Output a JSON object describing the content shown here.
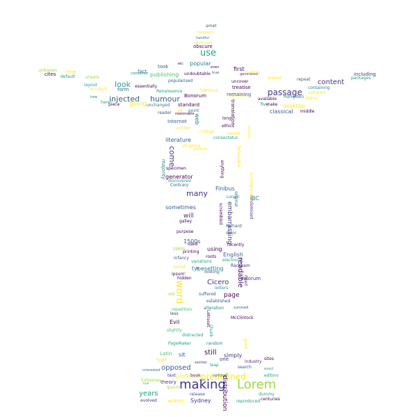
{
  "palette": {
    "purple": "#46327e",
    "dark_purple": "#440154",
    "blue": "#365c8d",
    "teal_blue": "#277f8e",
    "teal": "#1fa187",
    "green": "#4ac16d",
    "light_green": "#9fda3a",
    "yellow": "#fde725"
  },
  "words": [
    {
      "text": "amet",
      "color": "blue"
    },
    {
      "text": "necessary",
      "color": "yellow"
    },
    {
      "text": "handful",
      "color": "teal_blue"
    },
    {
      "text": "dictionary",
      "color": "yellow"
    },
    {
      "text": "obscure",
      "color": "dark_purple"
    },
    {
      "text": "use",
      "color": "teal"
    },
    {
      "text": "etc",
      "color": "dark_purple"
    },
    {
      "text": "popular",
      "color": "teal_blue"
    },
    {
      "text": "even",
      "color": "dark_purple"
    },
    {
      "text": "true",
      "color": "blue"
    },
    {
      "text": "unknown",
      "color": "light_green"
    },
    {
      "text": "cites",
      "color": "dark_purple"
    },
    {
      "text": "line",
      "color": "yellow"
    },
    {
      "text": "default",
      "color": "teal"
    },
    {
      "text": "sheets",
      "color": "light_green"
    },
    {
      "text": "combined",
      "color": "teal_blue"
    },
    {
      "text": "fact",
      "color": "teal_blue"
    },
    {
      "text": "took",
      "color": "blue"
    },
    {
      "text": "publishing",
      "color": "green"
    },
    {
      "text": "undoubtable",
      "color": "dark_purple"
    },
    {
      "text": "first",
      "color": "dark_purple"
    },
    {
      "text": "generated",
      "color": "purple"
    },
    {
      "text": "making",
      "color": "yellow"
    },
    {
      "text": "popularised",
      "color": "blue"
    },
    {
      "text": "uncover",
      "color": "dark_purple"
    },
    {
      "text": "looked",
      "color": "yellow"
    },
    {
      "text": "repeat",
      "color": "blue"
    },
    {
      "text": "including",
      "color": "purple"
    },
    {
      "text": "packages",
      "color": "teal"
    },
    {
      "text": "versions",
      "color": "yellow"
    },
    {
      "text": "layout",
      "color": "teal"
    },
    {
      "text": "accident",
      "color": "yellow"
    },
    {
      "text": "look",
      "color": "teal"
    },
    {
      "text": "form",
      "color": "blue"
    },
    {
      "text": "essentially",
      "color": "dark_purple"
    },
    {
      "text": "Various",
      "color": "yellow"
    },
    {
      "text": "treatise",
      "color": "dark_purple"
    },
    {
      "text": "passage",
      "color": "purple"
    },
    {
      "text": "content",
      "color": "purple"
    },
    {
      "text": "containing",
      "color": "teal_blue"
    },
    {
      "text": "software",
      "color": "yellow"
    },
    {
      "text": "Renaissance",
      "color": "teal"
    },
    {
      "text": "Bonorum",
      "color": "dark_purple"
    },
    {
      "text": "tree",
      "color": "teal_blue"
    },
    {
      "text": "injected",
      "color": "blue"
    },
    {
      "text": "humour",
      "color": "blue"
    },
    {
      "text": "available",
      "color": "dark_purple"
    },
    {
      "text": "make",
      "color": "dark_purple"
    },
    {
      "text": "Hampden",
      "color": "teal_blue"
    },
    {
      "text": "Aldus",
      "color": "yellow"
    },
    {
      "text": "here'",
      "color": "teal"
    },
    {
      "text": "piece",
      "color": "dark_purple"
    },
    {
      "text": "going",
      "color": "yellow"
    },
    {
      "text": "unchanged",
      "color": "teal_blue"
    },
    {
      "text": "standard",
      "color": "dark_purple"
    },
    {
      "text": "five",
      "color": "teal_blue"
    },
    {
      "text": "desktop",
      "color": "yellow"
    },
    {
      "text": "classical",
      "color": "blue"
    },
    {
      "text": "middle",
      "color": "dark_purple"
    },
    {
      "text": "reader",
      "color": "blue"
    },
    {
      "text": "et",
      "color": "yellow"
    },
    {
      "text": "point",
      "color": "teal_blue"
    },
    {
      "text": "reasonable",
      "color": "dark_purple"
    },
    {
      "text": "Internet",
      "color": "blue"
    },
    {
      "text": "web",
      "color": "teal_blue"
    },
    {
      "text": "long",
      "color": "dark_purple"
    },
    {
      "text": "ethics",
      "color": "dark_purple"
    },
    {
      "text": "printer",
      "color": "yellow"
    },
    {
      "text": "college",
      "color": "yellow"
    },
    {
      "text": "model",
      "color": "yellow"
    },
    {
      "text": "consectetur",
      "color": "teal"
    },
    {
      "text": "literature",
      "color": "blue"
    },
    {
      "text": "Virginia",
      "color": "yellow"
    },
    {
      "text": "produce",
      "color": "yellow"
    },
    {
      "text": "come",
      "color": "purple"
    },
    {
      "text": "majority",
      "color": "teal_blue"
    },
    {
      "text": "specimen",
      "color": "dark_purple"
    },
    {
      "text": "generator",
      "color": "dark_purple"
    },
    {
      "text": "discovered",
      "color": "teal"
    },
    {
      "text": "many",
      "color": "purple"
    },
    {
      "text": "Contrary",
      "color": "blue"
    },
    {
      "text": "Finibus",
      "color": "blue"
    },
    {
      "text": "BC",
      "color": "teal_blue"
    },
    {
      "text": "sometimes",
      "color": "blue"
    },
    {
      "text": "will",
      "color": "purple"
    },
    {
      "text": "galley",
      "color": "dark_purple"
    },
    {
      "text": "purpose",
      "color": "dark_purple"
    },
    {
      "text": "Lorem",
      "color": "teal"
    },
    {
      "text": "scrambled",
      "color": "dark_purple"
    },
    {
      "text": "Richard",
      "color": "blue"
    },
    {
      "text": "dolor",
      "color": "teal_blue"
    },
    {
      "text": "randomised",
      "color": "purple"
    },
    {
      "text": "1500s",
      "color": "blue"
    },
    {
      "text": "1960s",
      "color": "light_green"
    },
    {
      "text": "used",
      "color": "dark_purple"
    },
    {
      "text": "printing",
      "color": "dark_purple"
    },
    {
      "text": "using",
      "color": "dark_purple"
    },
    {
      "text": "recently",
      "color": "dark_purple"
    },
    {
      "text": "infancy",
      "color": "blue"
    },
    {
      "text": "roots",
      "color": "dark_purple"
    },
    {
      "text": "English",
      "color": "blue"
    },
    {
      "text": "variations",
      "color": "teal"
    },
    {
      "text": "electronic",
      "color": "teal"
    },
    {
      "text": "belief",
      "color": "yellow"
    },
    {
      "text": "typesetting",
      "color": "teal_blue"
    },
    {
      "text": "Rackham",
      "color": "purple"
    },
    {
      "text": "ipsum'",
      "color": "dark_purple"
    },
    {
      "text": "looking",
      "color": "blue"
    },
    {
      "text": "readable",
      "color": "dark_purple"
    },
    {
      "text": "hidden",
      "color": "dark_purple"
    },
    {
      "text": "word",
      "color": "yellow"
    },
    {
      "text": "Cicero",
      "color": "purple"
    },
    {
      "text": "letters",
      "color": "teal"
    },
    {
      "text": "old",
      "color": "light_green"
    },
    {
      "text": "suffered",
      "color": "blue"
    },
    {
      "text": "page",
      "color": "dark_purple"
    },
    {
      "text": "established",
      "color": "blue"
    },
    {
      "text": "need",
      "color": "purple"
    },
    {
      "text": "alteration",
      "color": "teal_blue"
    },
    {
      "text": "survived",
      "color": "blue"
    },
    {
      "text": "repetition",
      "color": "green"
    },
    {
      "text": "Letraset",
      "color": "dark_purple"
    },
    {
      "text": "less",
      "color": "purple"
    },
    {
      "text": "McClintock",
      "color": "dark_purple"
    },
    {
      "text": "Evil",
      "color": "dark_purple"
    },
    {
      "text": "chunk",
      "color": "teal"
    },
    {
      "text": "slightly",
      "color": "green"
    },
    {
      "text": "distracted",
      "color": "teal"
    },
    {
      "text": "good",
      "color": "yellow"
    },
    {
      "text": "PageMaker",
      "color": "teal"
    },
    {
      "text": "random",
      "color": "teal_blue"
    },
    {
      "text": "still",
      "color": "dark_purple"
    },
    {
      "text": "Latin",
      "color": "green"
    },
    {
      "text": "sit",
      "color": "blue"
    },
    {
      "text": "simply",
      "color": "purple"
    },
    {
      "text": "industry",
      "color": "purple"
    },
    {
      "text": "sites",
      "color": "dark_purple"
    },
    {
      "text": "one",
      "color": "purple"
    },
    {
      "text": "type",
      "color": "yellow"
    },
    {
      "text": "opposed",
      "color": "blue"
    },
    {
      "text": "section",
      "color": "purple"
    },
    {
      "text": "leap",
      "color": "teal"
    },
    {
      "text": "search",
      "color": "blue"
    },
    {
      "text": "exact",
      "color": "teal"
    },
    {
      "text": "predefined",
      "color": "yellow"
    },
    {
      "text": "text",
      "color": "purple"
    },
    {
      "text": "professor",
      "color": "yellow"
    },
    {
      "text": "book",
      "color": "purple"
    },
    {
      "text": "normal",
      "color": "blue"
    },
    {
      "text": "editors",
      "color": "teal"
    },
    {
      "text": "Extremes",
      "color": "light_green"
    },
    {
      "text": "theory",
      "color": "purple"
    },
    {
      "text": "years",
      "color": "teal"
    },
    {
      "text": "making",
      "color": "purple"
    },
    {
      "text": "Lorem",
      "color": "light_green"
    },
    {
      "text": "Ipsum",
      "color": "light_green"
    },
    {
      "text": "release",
      "color": "blue"
    },
    {
      "text": "distribution",
      "color": "dark_purple"
    },
    {
      "text": "dummy",
      "color": "teal"
    },
    {
      "text": "evolved",
      "color": "purple"
    },
    {
      "text": "written",
      "color": "yellow"
    },
    {
      "text": "Sydney",
      "color": "purple"
    },
    {
      "text": "reproduced",
      "color": "teal"
    },
    {
      "text": "centuries",
      "color": "dark_purple"
    },
    {
      "text": "interested",
      "color": "teal_blue"
    },
    {
      "text": "true",
      "color": "teal"
    },
    {
      "text": "sure",
      "color": "teal_blue"
    },
    {
      "text": "remaining",
      "color": "blue"
    },
    {
      "text": "humour",
      "color": "yellow"
    },
    {
      "text": "accompanied",
      "color": "yellow"
    },
    {
      "text": "original",
      "color": "blue"
    },
    {
      "text": "anything",
      "color": "dark_purple"
    },
    {
      "text": "believable",
      "color": "yellow"
    },
    {
      "text": "translation",
      "color": "dark_purple"
    },
    {
      "text": "embarrassing",
      "color": "purple"
    },
    {
      "text": "dolorum",
      "color": "purple"
    },
    {
      "text": "H",
      "color": "dark_purple"
    },
    {
      "text": "tend",
      "color": "blue"
    }
  ]
}
